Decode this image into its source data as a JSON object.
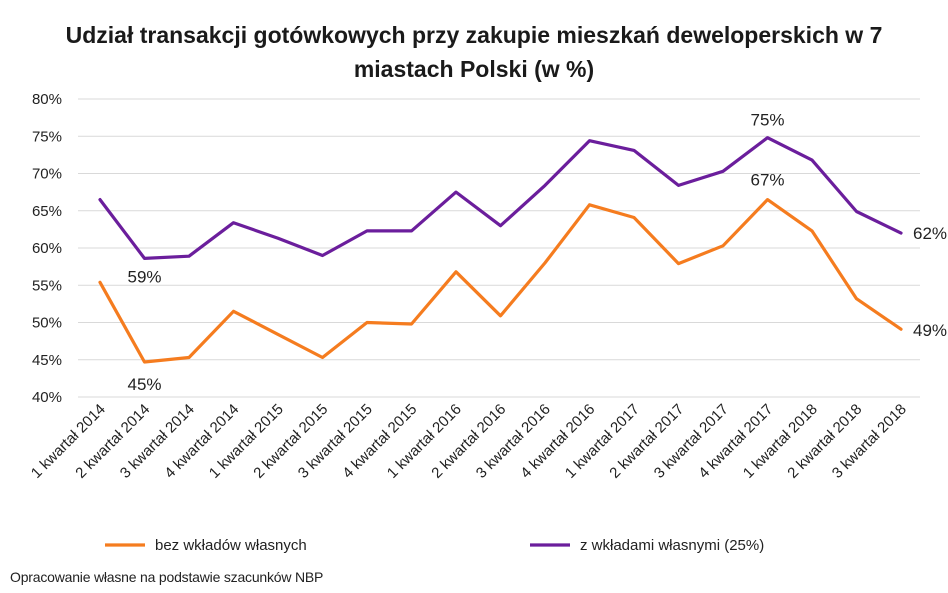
{
  "chart_data": {
    "type": "line",
    "title_lines": [
      "Udział transakcji gotówkowych przy zakupie mieszkań deweloperskich w 7",
      "miastach Polski (w %)"
    ],
    "categories": [
      "1 kwartał 2014",
      "2 kwartał 2014",
      "3 kwartał 2014",
      "4 kwartał 2014",
      "1 kwartał 2015",
      "2 kwartał 2015",
      "3 kwartał 2015",
      "4 kwartał 2015",
      "1 kwartał 2016",
      "2 kwartał 2016",
      "3 kwartał 2016",
      "4 kwartał 2016",
      "1 kwartał 2017",
      "2 kwartał 2017",
      "3 kwartał 2017",
      "4 kwartał 2017",
      "1 kwartał 2018",
      "2 kwartał 2018",
      "3 kwartał 2018"
    ],
    "yticks": [
      "80%",
      "75%",
      "70%",
      "65%",
      "60%",
      "55%",
      "50%",
      "45%",
      "40%"
    ],
    "ylim": [
      40,
      80
    ],
    "grid": true,
    "legend_position": "bottom",
    "series": [
      {
        "name": "bez wkładów własnych",
        "color": "#F57C1F",
        "values": [
          55.4,
          44.7,
          45.3,
          51.5,
          48.4,
          45.3,
          50.0,
          49.8,
          56.8,
          50.9,
          58.0,
          65.8,
          64.1,
          57.9,
          60.3,
          66.5,
          62.3,
          53.2,
          49.1
        ]
      },
      {
        "name": "z wkładami własnymi (25%)",
        "color": "#6B1E9C",
        "values": [
          66.5,
          58.6,
          58.9,
          63.4,
          61.3,
          59.0,
          62.3,
          62.3,
          67.5,
          63.0,
          68.4,
          74.4,
          73.1,
          68.4,
          70.3,
          74.8,
          71.8,
          64.9,
          62.0
        ]
      }
    ],
    "annotations": [
      {
        "series": 1,
        "index": 1,
        "text": "59%"
      },
      {
        "series": 0,
        "index": 1,
        "text": "45%"
      },
      {
        "series": 1,
        "index": 15,
        "text": "75%"
      },
      {
        "series": 0,
        "index": 15,
        "text": "67%"
      },
      {
        "series": 1,
        "index": 18,
        "text": "62%"
      },
      {
        "series": 0,
        "index": 18,
        "text": "49%"
      }
    ],
    "source_note": "Opracowanie własne na podstawie szacunków NBP"
  }
}
